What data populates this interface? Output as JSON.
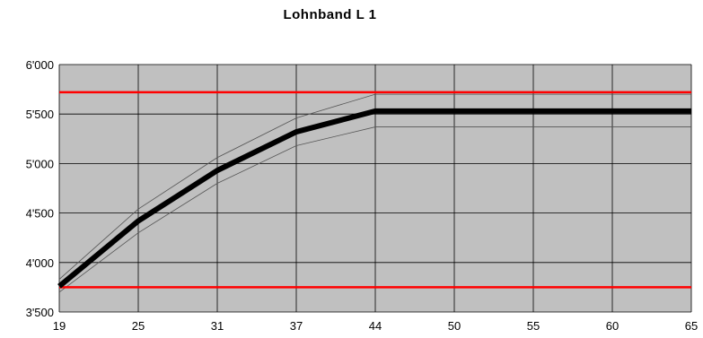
{
  "chart_data": {
    "type": "line",
    "title": "Lohnband L 1",
    "xlabel": "",
    "ylabel": "",
    "x_ticks": [
      "19",
      "25",
      "31",
      "37",
      "44",
      "50",
      "55",
      "60",
      "65"
    ],
    "y_ticks": [
      "3'500",
      "4'000",
      "4'500",
      "5'000",
      "5'500",
      "6'000"
    ],
    "y_tick_values": [
      3500,
      4000,
      4500,
      5000,
      5500,
      6000
    ],
    "ylim": [
      3500,
      6000
    ],
    "grid": true,
    "legend": "none",
    "series": [
      {
        "role": "main",
        "x": [
          "19",
          "25",
          "31",
          "37",
          "44",
          "50",
          "55",
          "60",
          "65"
        ],
        "values": [
          3760,
          4420,
          4930,
          5320,
          5530,
          5530,
          5530,
          5530,
          5530
        ],
        "color": "#000000"
      },
      {
        "role": "upper-band",
        "x": [
          "19",
          "25",
          "31",
          "37",
          "44",
          "50",
          "55",
          "60",
          "65"
        ],
        "values": [
          3830,
          4540,
          5060,
          5460,
          5700,
          5700,
          5700,
          5700,
          5700
        ],
        "color": "#555555"
      },
      {
        "role": "lower-band",
        "x": [
          "19",
          "25",
          "31",
          "37",
          "44",
          "50",
          "55",
          "60",
          "65"
        ],
        "values": [
          3700,
          4300,
          4800,
          5180,
          5370,
          5370,
          5370,
          5370,
          5370
        ],
        "color": "#555555"
      }
    ],
    "reference_lines": [
      {
        "role": "maximum",
        "value": 5720,
        "color": "#ff0000"
      },
      {
        "role": "minimum",
        "value": 3750,
        "color": "#ff0000"
      }
    ],
    "plot_background": "#c0c0c0"
  }
}
